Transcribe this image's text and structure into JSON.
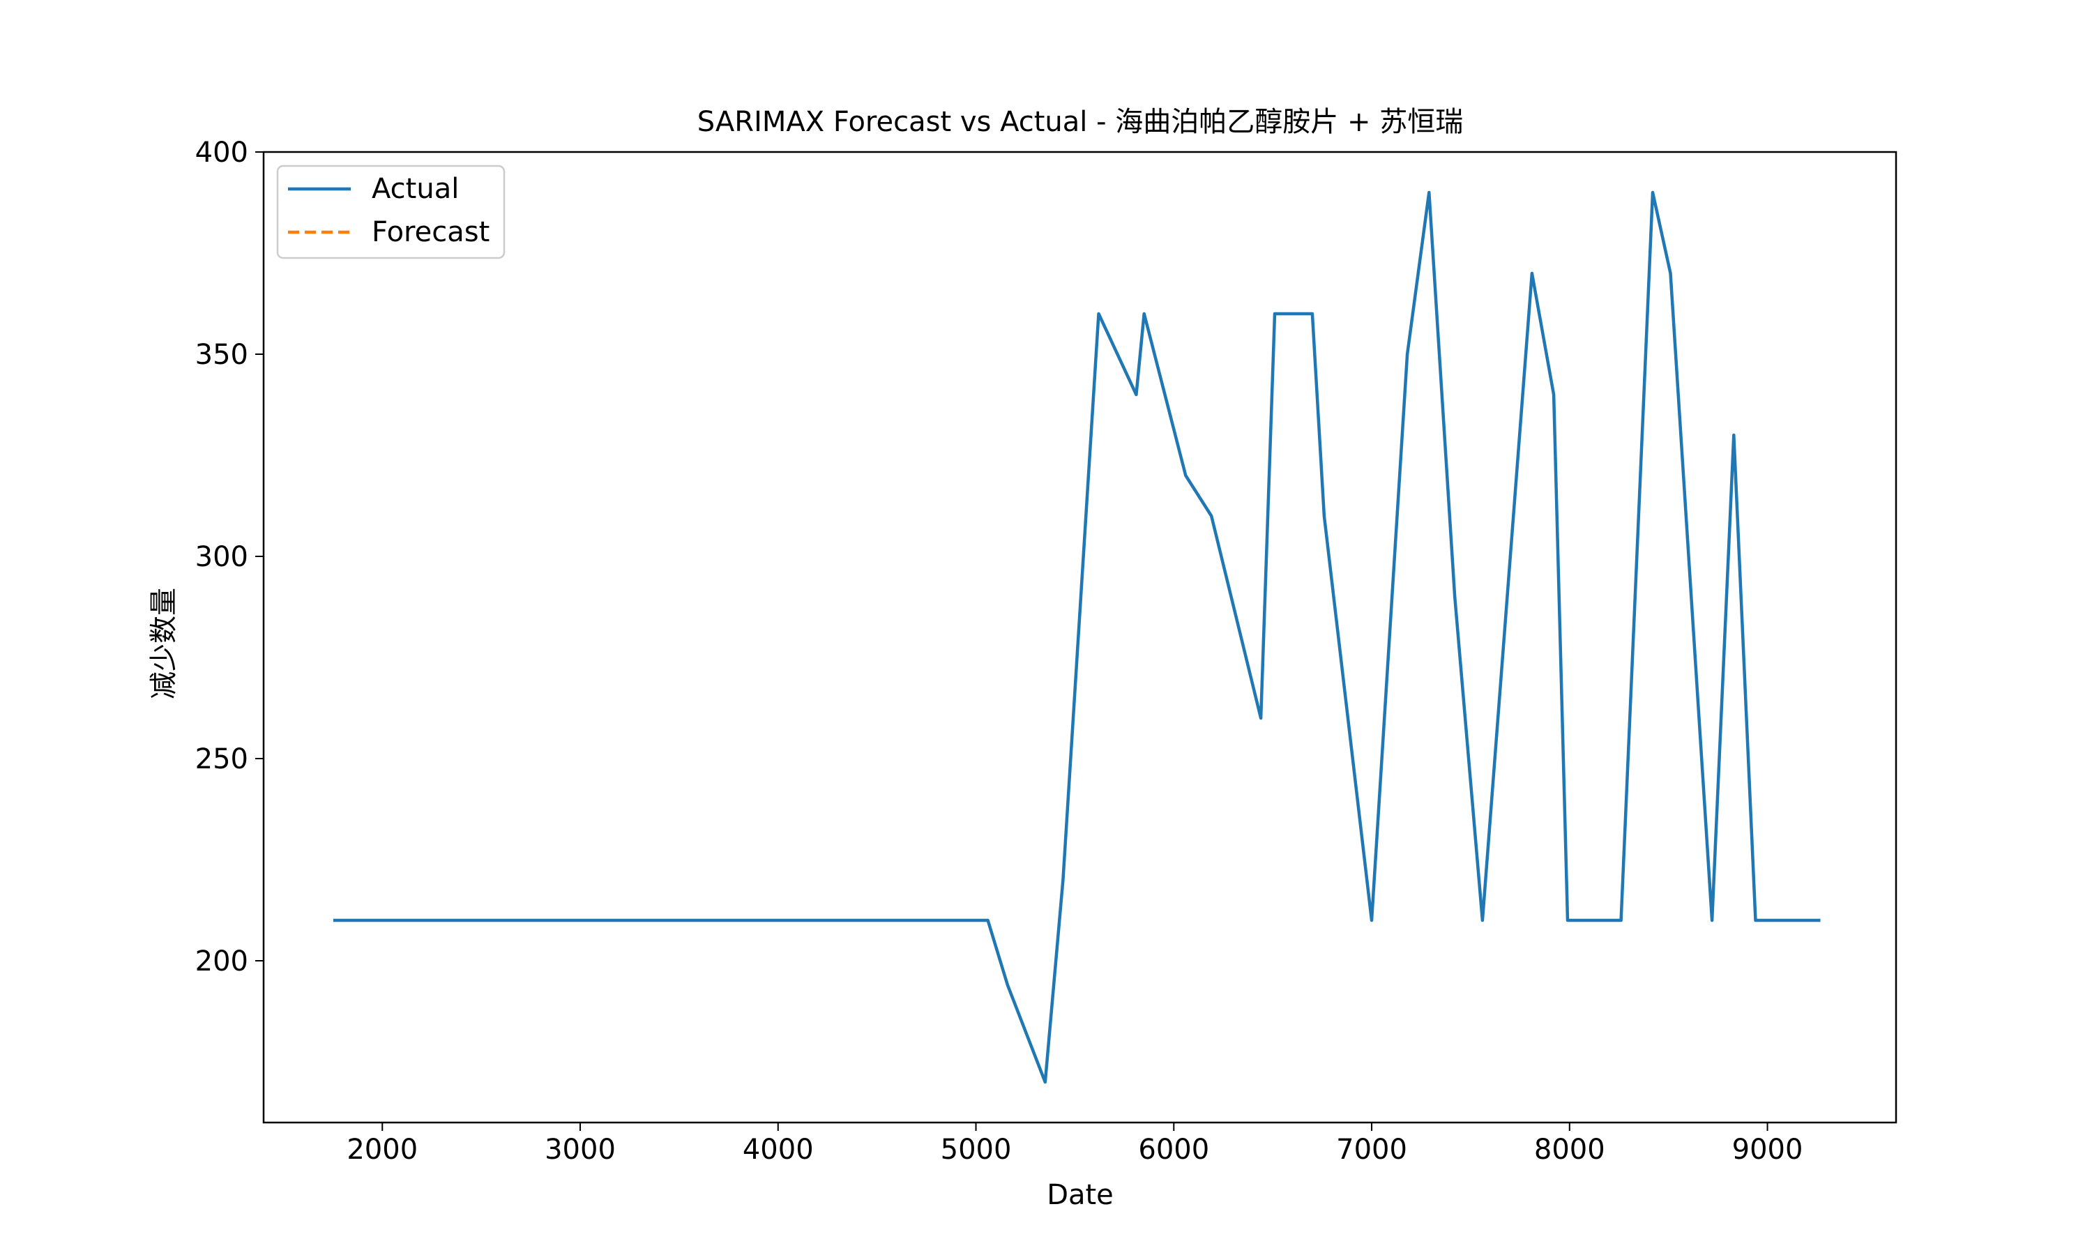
{
  "chart_data": {
    "type": "line",
    "title": "SARIMAX Forecast vs Actual - 海曲泊帕乙醇胺片 + 苏恒瑞",
    "xlabel": "Date",
    "ylabel": "减少数量",
    "xlim": [
      1400,
      9650
    ],
    "ylim": [
      160,
      400
    ],
    "xticks": [
      2000,
      3000,
      4000,
      5000,
      6000,
      7000,
      8000,
      9000
    ],
    "yticks": [
      200,
      250,
      300,
      350,
      400
    ],
    "xtick_labels": [
      "2000",
      "3000",
      "4000",
      "5000",
      "6000",
      "7000",
      "8000",
      "9000"
    ],
    "ytick_labels": [
      "200",
      "250",
      "300",
      "350",
      "400"
    ],
    "grid": false,
    "legend": {
      "placement": "upper-left",
      "entries": [
        "Actual",
        "Forecast"
      ]
    },
    "colors": {
      "actual": "#1f77b4",
      "forecast": "#ff7f0e"
    },
    "series": [
      {
        "name": "Actual",
        "style": "solid",
        "x": [
          1760,
          5060,
          5160,
          5350,
          5440,
          5620,
          5810,
          5850,
          6060,
          6190,
          6440,
          6510,
          6700,
          6760,
          7000,
          7180,
          7290,
          7420,
          7560,
          7810,
          7920,
          7990,
          8260,
          8420,
          8510,
          8720,
          8830,
          8940,
          9260
        ],
        "y": [
          210,
          210,
          194,
          170,
          220,
          360,
          340,
          360,
          320,
          310,
          260,
          360,
          360,
          310,
          210,
          350,
          390,
          290,
          210,
          370,
          340,
          210,
          210,
          390,
          370,
          210,
          330,
          210,
          210
        ]
      },
      {
        "name": "Forecast",
        "style": "dashed",
        "x": [],
        "y": []
      }
    ]
  }
}
